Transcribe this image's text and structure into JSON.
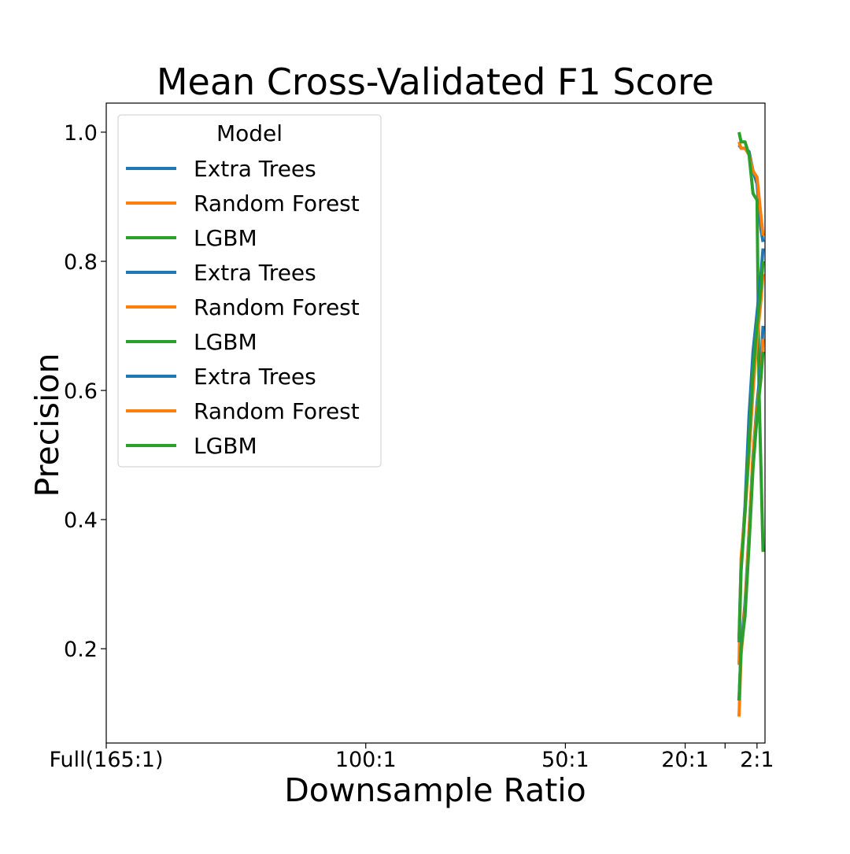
{
  "chart_data": {
    "type": "line",
    "title": "Mean Cross-Validated F1 Score",
    "xlabel": "Downsample Ratio",
    "ylabel": "Precision",
    "xlim": [
      165,
      0
    ],
    "ylim": [
      0.054,
      1.045
    ],
    "x_ticks": [
      {
        "value": 165,
        "label": "Full(165:1)"
      },
      {
        "value": 100,
        "label": "100:1"
      },
      {
        "value": 50,
        "label": "50:1"
      },
      {
        "value": 20,
        "label": "20:1"
      },
      {
        "value": 10,
        "label": ""
      },
      {
        "value": 2,
        "label": "2:1"
      }
    ],
    "y_ticks": [
      {
        "value": 0.2,
        "label": "0.2"
      },
      {
        "value": 0.4,
        "label": "0.4"
      },
      {
        "value": 0.6,
        "label": "0.6"
      },
      {
        "value": 0.8,
        "label": "0.8"
      },
      {
        "value": 1.0,
        "label": "1.0"
      }
    ],
    "grid": false,
    "legend": {
      "title": "Model",
      "position": "top-left"
    },
    "series": [
      {
        "name": "Extra Trees",
        "color": "#1f77b4",
        "x": [
          6.5,
          6,
          5,
          4,
          3,
          2,
          1,
          0.5
        ],
        "y": [
          0.98,
          0.975,
          0.975,
          0.97,
          0.94,
          0.92,
          0.85,
          0.83
        ]
      },
      {
        "name": "Random Forest",
        "color": "#ff7f0e",
        "x": [
          6.5,
          6,
          5,
          4,
          3,
          2,
          1,
          0.5
        ],
        "y": [
          0.985,
          0.975,
          0.975,
          0.965,
          0.94,
          0.93,
          0.87,
          0.84
        ]
      },
      {
        "name": "LGBM",
        "color": "#2ca02c",
        "x": [
          6.5,
          6,
          5,
          4,
          3,
          2,
          1.5,
          0.5
        ],
        "y": [
          1.0,
          0.985,
          0.985,
          0.965,
          0.905,
          0.895,
          0.6,
          0.35
        ]
      },
      {
        "name": "Extra Trees",
        "color": "#1f77b4",
        "x": [
          6.5,
          6,
          5,
          4,
          3,
          2,
          1,
          0.5
        ],
        "y": [
          0.215,
          0.33,
          0.42,
          0.56,
          0.66,
          0.72,
          0.78,
          0.82
        ]
      },
      {
        "name": "Random Forest",
        "color": "#ff7f0e",
        "x": [
          6.5,
          6,
          5,
          4,
          3,
          2,
          1,
          0.5
        ],
        "y": [
          0.175,
          0.34,
          0.41,
          0.5,
          0.6,
          0.68,
          0.74,
          0.78
        ]
      },
      {
        "name": "LGBM",
        "color": "#2ca02c",
        "x": [
          6.5,
          6,
          5,
          4,
          3,
          2,
          1,
          0.5
        ],
        "y": [
          0.21,
          0.32,
          0.41,
          0.52,
          0.63,
          0.7,
          0.76,
          0.8
        ]
      },
      {
        "name": "Extra Trees",
        "color": "#1f77b4",
        "x": [
          6.5,
          6,
          5,
          4,
          3,
          2,
          1,
          0.5
        ],
        "y": [
          0.12,
          0.2,
          0.27,
          0.38,
          0.5,
          0.58,
          0.64,
          0.7
        ]
      },
      {
        "name": "Random Forest",
        "color": "#ff7f0e",
        "x": [
          6.5,
          6,
          5,
          4,
          3,
          2,
          1,
          0.5
        ],
        "y": [
          0.095,
          0.19,
          0.26,
          0.38,
          0.5,
          0.57,
          0.62,
          0.68
        ]
      },
      {
        "name": "LGBM",
        "color": "#2ca02c",
        "x": [
          6.5,
          6,
          5,
          4,
          3,
          2,
          1,
          0.5
        ],
        "y": [
          0.12,
          0.2,
          0.25,
          0.36,
          0.48,
          0.56,
          0.62,
          0.66
        ]
      }
    ]
  }
}
